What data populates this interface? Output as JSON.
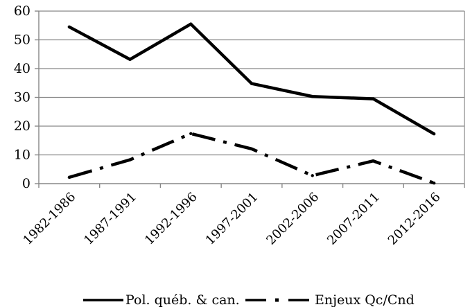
{
  "chart_data": {
    "type": "line",
    "categories": [
      "1982-1986",
      "1987-1991",
      "1992-1996",
      "1997-2001",
      "2002-2006",
      "2007-2011",
      "2012-2016"
    ],
    "series": [
      {
        "name": "Pol. québ. & can.",
        "values": [
          54.5,
          43.2,
          55.5,
          34.8,
          30.3,
          29.5,
          17.3
        ],
        "style": "solid",
        "color": "#000000"
      },
      {
        "name": "Enjeux Qc/Cnd",
        "values": [
          2.2,
          8.3,
          17.4,
          12.1,
          2.8,
          7.9,
          0.2
        ],
        "style": "dash-dot",
        "color": "#000000"
      }
    ],
    "ylim": [
      0,
      60
    ],
    "yticks": [
      0,
      10,
      20,
      30,
      40,
      50,
      60
    ],
    "grid": true,
    "legend_position": "bottom",
    "xlabel": "",
    "ylabel": ""
  }
}
